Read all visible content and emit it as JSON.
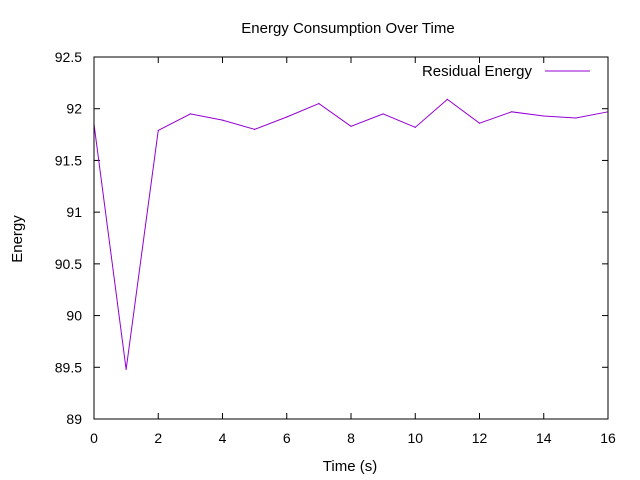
{
  "chart_data": {
    "type": "line",
    "title": "Energy Consumption Over Time",
    "xlabel": "Time (s)",
    "ylabel": "Energy",
    "xlim": [
      0,
      16
    ],
    "ylim": [
      89,
      92.5
    ],
    "xticks": [
      0,
      2,
      4,
      6,
      8,
      10,
      12,
      14,
      16
    ],
    "yticks": [
      89,
      89.5,
      90,
      90.5,
      91,
      91.5,
      92,
      92.5
    ],
    "xtick_labels": [
      "0",
      "2",
      "4",
      "6",
      "8",
      "10",
      "12",
      "14",
      "16"
    ],
    "ytick_labels": [
      "89",
      "89.5",
      "90",
      "90.5",
      "91",
      "91.5",
      "92",
      "92.5"
    ],
    "grid": false,
    "legend_position": "top-right",
    "series": [
      {
        "name": "Residual Energy",
        "color": "#9400d3",
        "x": [
          0,
          1,
          2,
          3,
          4,
          5,
          6,
          7,
          8,
          9,
          10,
          11,
          12,
          13,
          14,
          15,
          16
        ],
        "y": [
          91.85,
          89.48,
          91.79,
          91.95,
          91.89,
          91.8,
          91.92,
          92.05,
          91.83,
          91.95,
          91.82,
          92.09,
          91.86,
          91.97,
          91.93,
          91.91,
          91.97
        ]
      }
    ]
  }
}
